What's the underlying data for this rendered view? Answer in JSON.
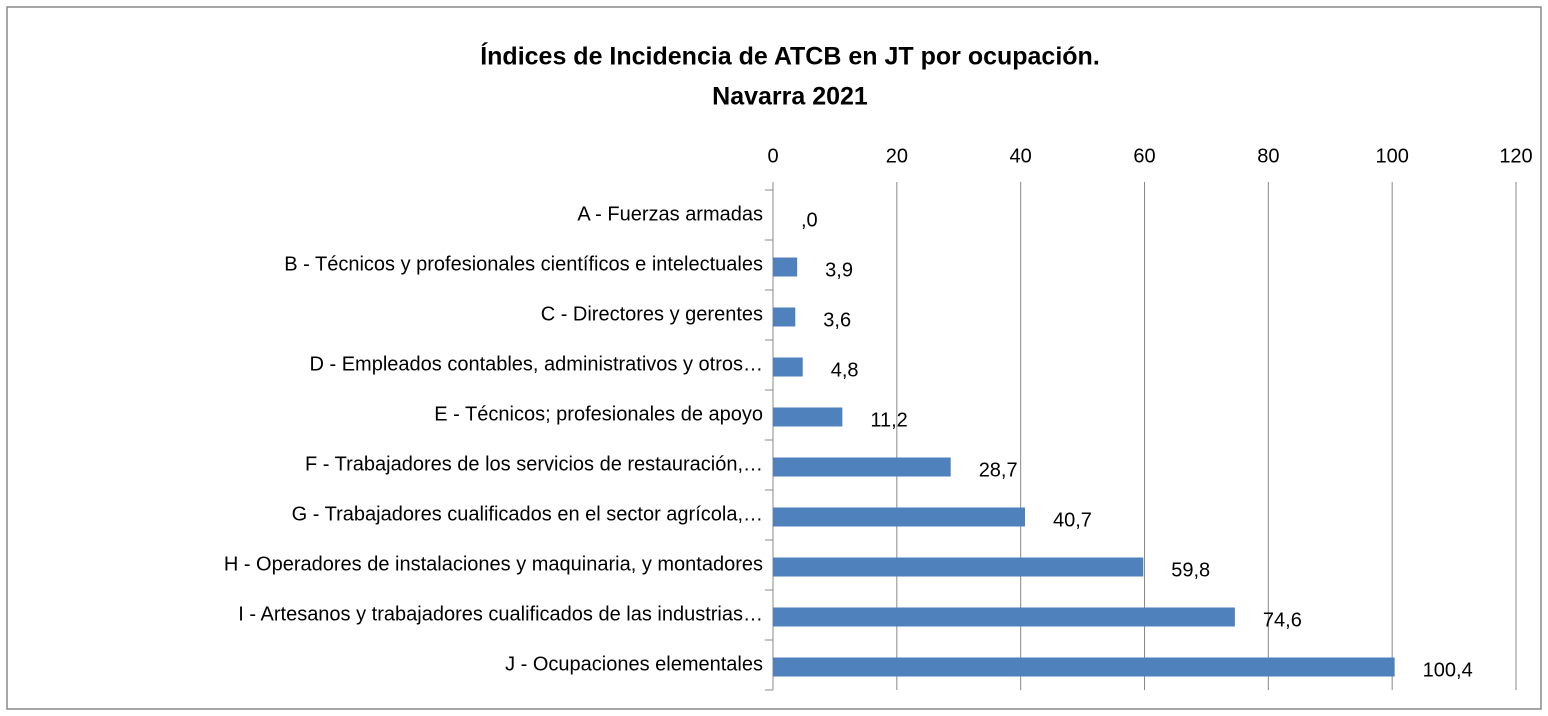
{
  "chart_data": {
    "type": "bar",
    "orientation": "horizontal",
    "title": [
      "Índices de Incidencia de ATCB en JT por ocupación.",
      "Navarra 2021"
    ],
    "categories": [
      "A - Fuerzas armadas",
      "B - Técnicos y profesionales científicos e intelectuales",
      "C - Directores y gerentes",
      "D - Empleados contables, administrativos y otros…",
      "E - Técnicos; profesionales de apoyo",
      "F - Trabajadores de los servicios de restauración,…",
      "G - Trabajadores cualificados en el sector agrícola,…",
      "H - Operadores de instalaciones y maquinaria, y montadores",
      "I - Artesanos y trabajadores cualificados de las industrias…",
      "J - Ocupaciones elementales"
    ],
    "values": [
      0,
      3.9,
      3.6,
      4.8,
      11.2,
      28.7,
      40.7,
      59.8,
      74.6,
      100.4
    ],
    "value_labels": [
      ",0",
      "3,9",
      "3,6",
      "4,8",
      "11,2",
      "28,7",
      "40,7",
      "59,8",
      "74,6",
      "100,4"
    ],
    "color": "#4f81bd",
    "xlim": [
      0,
      120
    ],
    "xticks": [
      0,
      20,
      40,
      60,
      80,
      100,
      120
    ],
    "grid": true
  }
}
